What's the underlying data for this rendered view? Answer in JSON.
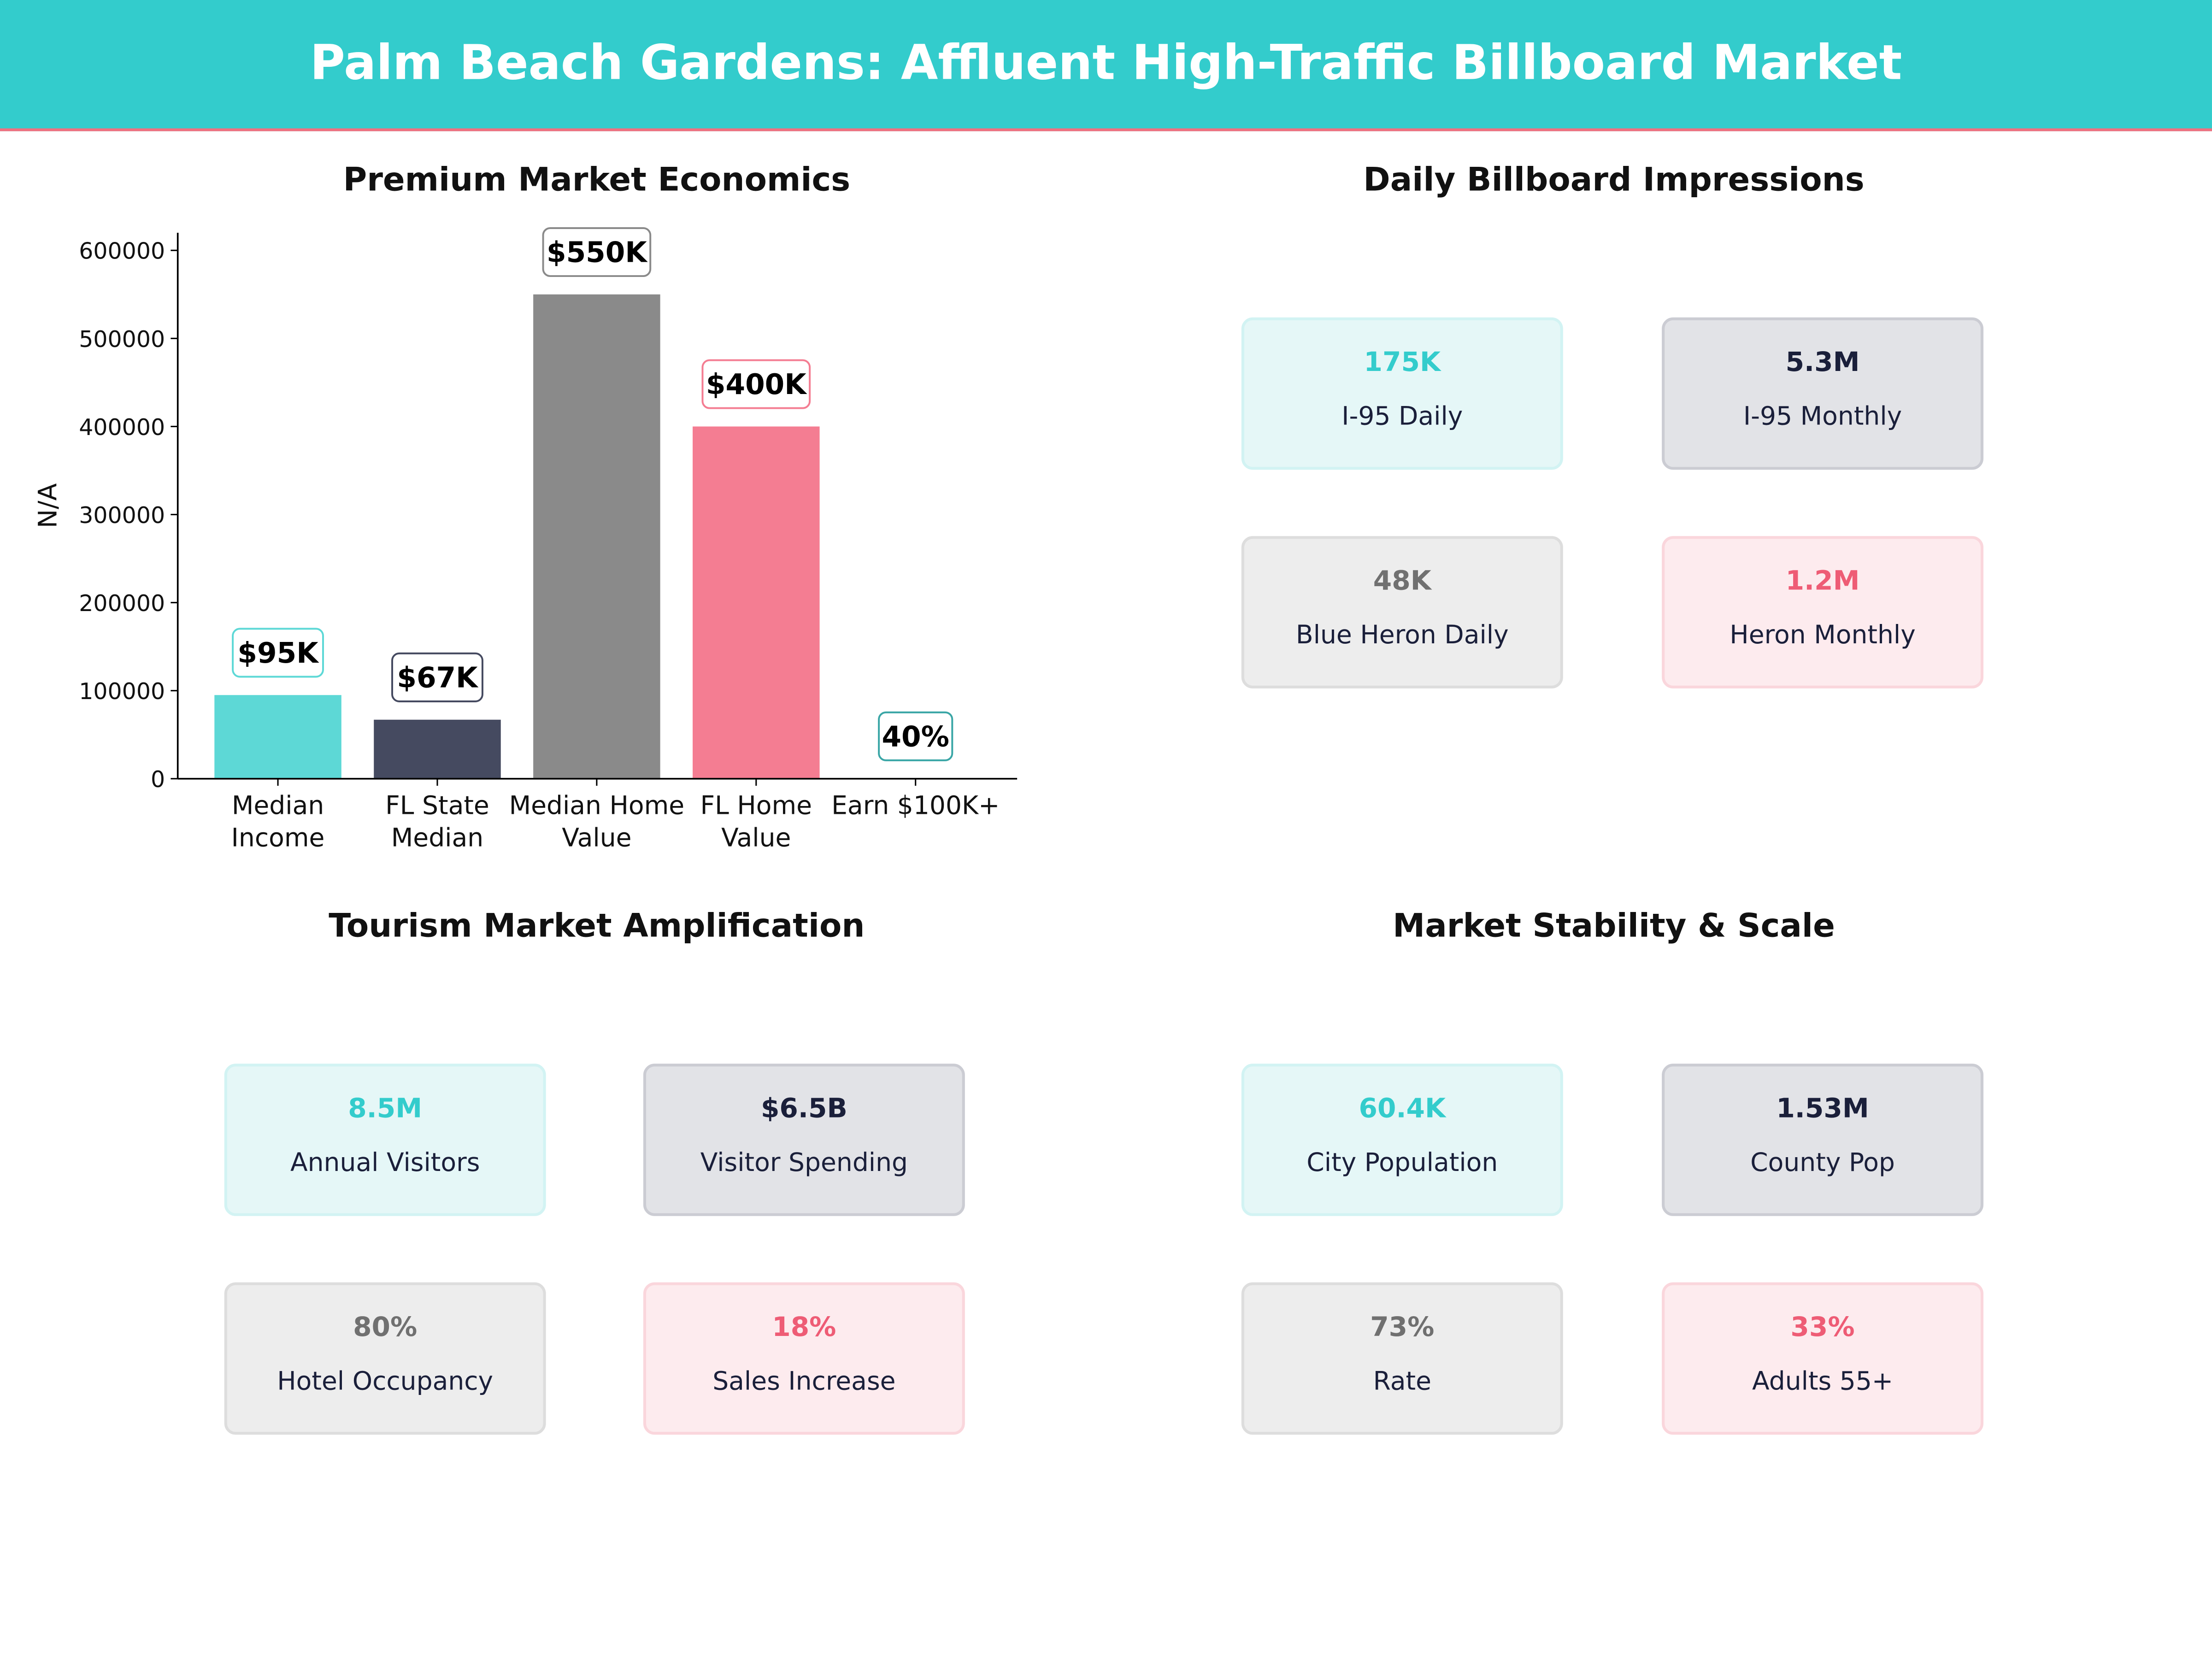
{
  "title": "Palm Beach Gardens: Affluent High-Traffic Billboard Market",
  "colors": {
    "header": "#33CCCC",
    "accent_line": "#F0707F"
  },
  "chart_data": {
    "type": "bar",
    "title": "Premium Market Economics",
    "ylabel": "N/A",
    "xlabel": "",
    "categories": [
      "Median\nIncome",
      "FL State\nMedian",
      "Median Home\nValue",
      "FL Home\nValue",
      "Earn $100K+"
    ],
    "values": [
      95000,
      67000,
      550000,
      400000,
      40
    ],
    "data_labels": [
      "$95K",
      "$67K",
      "$550K",
      "$400K",
      "40%"
    ],
    "colors": [
      "#5DD8D6",
      "#454A60",
      "#8A8A8A",
      "#F47D92",
      "#5DD8D6"
    ],
    "label_border_colors": [
      "#5DD8D6",
      "#454A60",
      "#8A8A8A",
      "#F47D92",
      "#3AA6A6"
    ],
    "ylim": [
      0,
      620000
    ],
    "yticks": [
      0,
      100000,
      200000,
      300000,
      400000,
      500000,
      600000
    ],
    "grid": false
  },
  "panels": [
    {
      "title": "Daily Billboard Impressions",
      "cards": [
        {
          "value": "175K",
          "label": "I-95 Daily"
        },
        {
          "value": "5.3M",
          "label": "I-95 Monthly"
        },
        {
          "value": "48K",
          "label": "Blue Heron Daily"
        },
        {
          "value": "1.2M",
          "label": "Heron Monthly"
        }
      ]
    },
    {
      "title": "Tourism Market Amplification",
      "cards": [
        {
          "value": "8.5M",
          "label": "Annual Visitors"
        },
        {
          "value": "$6.5B",
          "label": "Visitor Spending"
        },
        {
          "value": "80%",
          "label": "Hotel Occupancy"
        },
        {
          "value": "18%",
          "label": "Sales Increase"
        }
      ]
    },
    {
      "title": "Market Stability & Scale",
      "cards": [
        {
          "value": "60.4K",
          "label": "City Population"
        },
        {
          "value": "1.53M",
          "label": "County Pop"
        },
        {
          "value": "73%",
          "label": "Rate"
        },
        {
          "value": "33%",
          "label": "Adults 55+"
        }
      ]
    }
  ]
}
